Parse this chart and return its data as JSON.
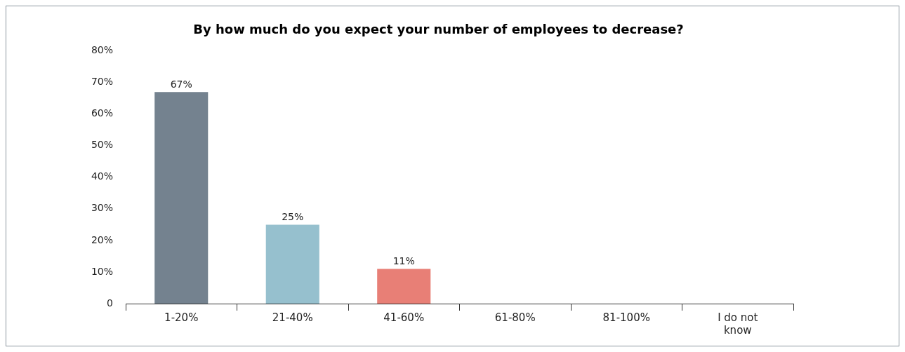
{
  "chart_data": {
    "type": "bar",
    "title": "By how much do you expect your number of employees to decrease?",
    "categories": [
      "1-20%",
      "21-40%",
      "41-60%",
      "61-80%",
      "81-100%",
      "I do not know"
    ],
    "values": [
      67,
      25,
      11,
      0,
      0,
      0
    ],
    "colors": [
      "#74828f",
      "#96c0ce",
      "#e87f76",
      "#74828f",
      "#96c0ce",
      "#e87f76"
    ],
    "value_labels": [
      "67%",
      "25%",
      "11%",
      null,
      null,
      null
    ],
    "ylim": [
      0,
      80
    ],
    "yticks": [
      {
        "value": 0,
        "label": "0"
      },
      {
        "value": 10,
        "label": "10%"
      },
      {
        "value": 20,
        "label": "20%"
      },
      {
        "value": 30,
        "label": "30%"
      },
      {
        "value": 40,
        "label": "40%"
      },
      {
        "value": 50,
        "label": "50%"
      },
      {
        "value": 60,
        "label": "60%"
      },
      {
        "value": 70,
        "label": "70%"
      },
      {
        "value": 80,
        "label": "80%"
      }
    ]
  }
}
